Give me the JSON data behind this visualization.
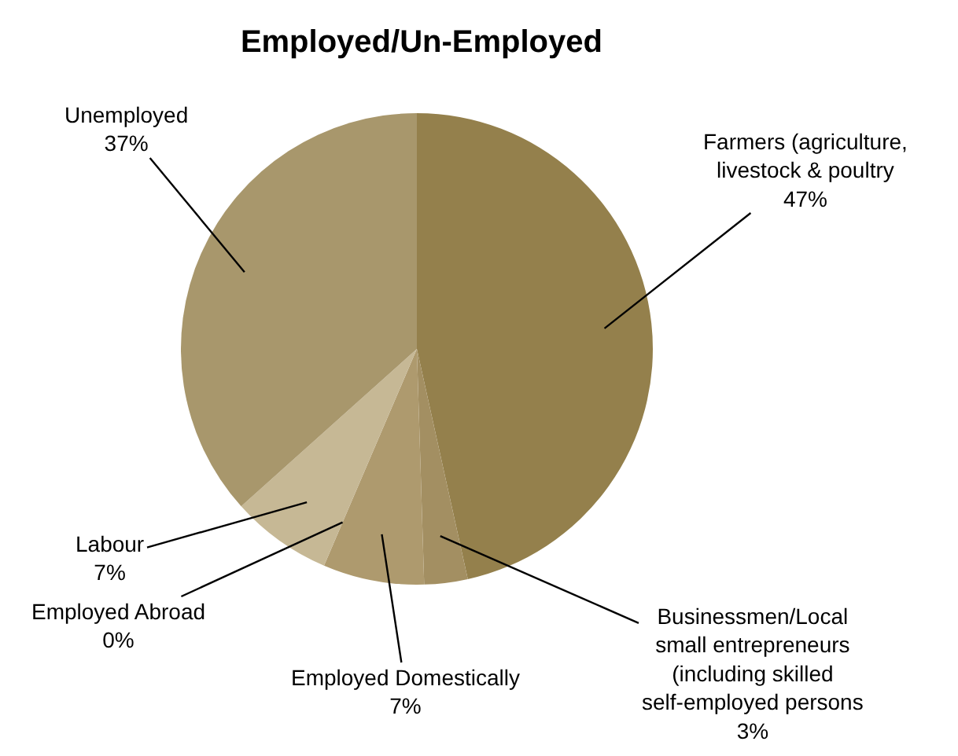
{
  "chart_data": {
    "type": "pie",
    "title": "Employed/Un-Employed",
    "categories": [
      "Farmers (agriculture, livestock & poultry",
      "Businessmen/Local small entrepreneurs (including skilled self-employed persons",
      "Employed Domestically",
      "Employed Abroad",
      "Labour",
      "Unemployed"
    ],
    "values": [
      47,
      3,
      7,
      0,
      7,
      37
    ],
    "value_labels": [
      "47%",
      "3%",
      "7%",
      "0%",
      "7%",
      "37%"
    ],
    "colors": [
      "#94804c",
      "#a38f62",
      "#ae9a6e",
      "#b8a67e",
      "#c6b895",
      "#a8976c"
    ]
  }
}
